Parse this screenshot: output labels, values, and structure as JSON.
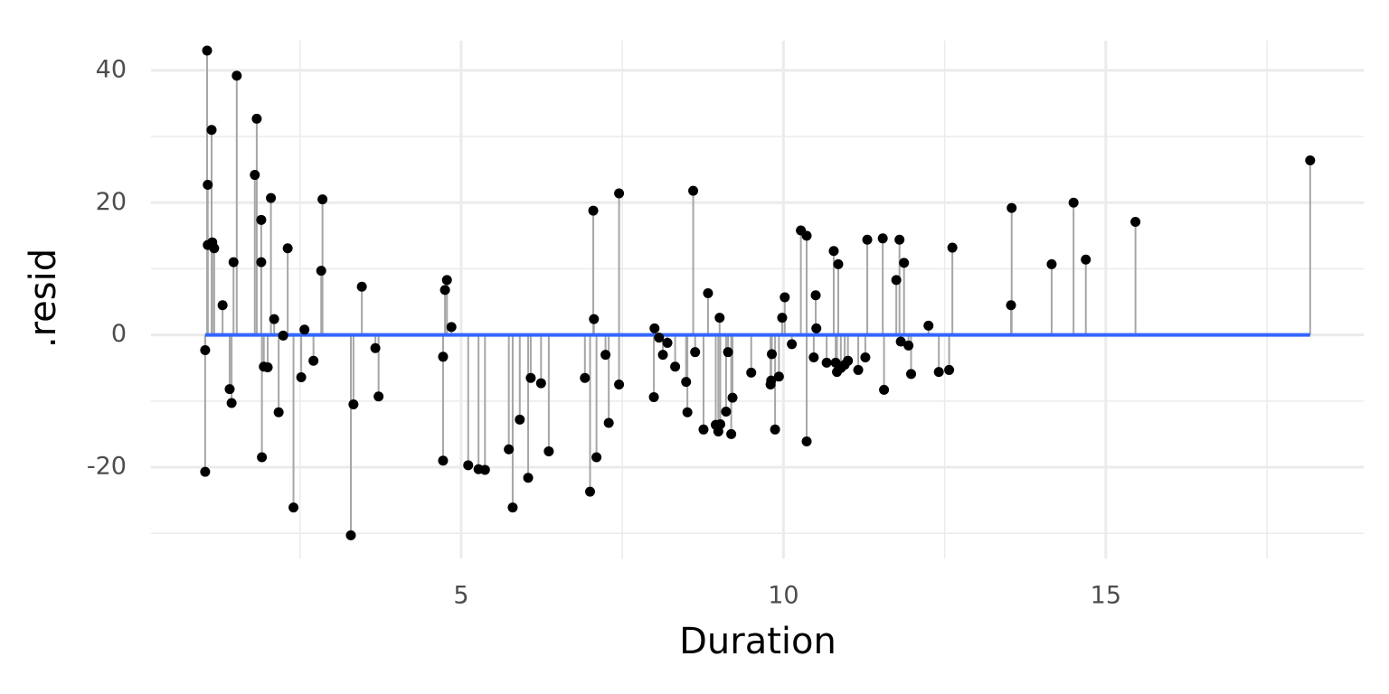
{
  "chart_data": {
    "type": "scatter",
    "stems": true,
    "xlabel": "Duration",
    "ylabel": ".resid",
    "x": [
      1.03,
      1.03,
      1.06,
      1.07,
      1.07,
      1.13,
      1.14,
      1.17,
      1.3,
      1.41,
      1.44,
      1.47,
      1.52,
      1.8,
      1.83,
      1.9,
      1.9,
      1.91,
      1.94,
      2.0,
      2.05,
      2.1,
      2.17,
      2.24,
      2.31,
      2.4,
      2.52,
      2.57,
      2.71,
      2.83,
      2.85,
      3.29,
      3.33,
      3.46,
      3.67,
      3.72,
      4.72,
      4.72,
      4.75,
      4.78,
      4.85,
      5.11,
      5.27,
      5.37,
      5.74,
      5.8,
      5.91,
      6.04,
      6.08,
      6.24,
      6.36,
      6.92,
      7.0,
      7.05,
      7.06,
      7.1,
      7.24,
      7.29,
      7.45,
      7.45,
      7.99,
      8.0,
      8.07,
      8.13,
      8.2,
      8.32,
      8.49,
      8.51,
      8.6,
      8.63,
      8.76,
      8.83,
      8.95,
      8.99,
      9.02,
      9.01,
      9.11,
      9.14,
      9.19,
      9.21,
      9.5,
      9.8,
      9.81,
      9.82,
      9.87,
      9.93,
      9.98,
      10.02,
      10.13,
      10.27,
      10.36,
      10.36,
      10.47,
      10.5,
      10.51,
      10.67,
      10.78,
      10.81,
      10.83,
      10.85,
      10.89,
      10.95,
      11.0,
      11.16,
      11.27,
      11.3,
      11.54,
      11.56,
      11.75,
      11.8,
      11.82,
      11.87,
      11.94,
      11.98,
      12.25,
      12.41,
      12.57,
      12.62,
      13.53,
      13.54,
      14.16,
      14.5,
      14.69,
      15.46,
      18.17
    ],
    "values": [
      -2.3,
      -20.7,
      43.0,
      22.7,
      13.6,
      31.0,
      14.0,
      13.1,
      4.5,
      -8.2,
      -10.3,
      11.0,
      39.2,
      24.2,
      32.7,
      17.4,
      11.0,
      -18.5,
      -4.8,
      -4.9,
      20.7,
      2.4,
      -11.7,
      -0.1,
      13.1,
      -26.1,
      -6.4,
      0.8,
      -3.9,
      9.7,
      20.5,
      -30.3,
      -10.5,
      7.3,
      -2.0,
      -9.3,
      -3.3,
      -19.0,
      6.8,
      8.3,
      1.2,
      -19.7,
      -20.3,
      -20.4,
      -17.3,
      -26.1,
      -12.8,
      -21.6,
      -6.5,
      -7.3,
      -17.6,
      -6.5,
      -23.7,
      18.8,
      2.4,
      -18.5,
      -3.0,
      -13.3,
      21.4,
      -7.5,
      -9.4,
      1.0,
      -0.4,
      -3.0,
      -1.2,
      -4.8,
      -7.1,
      -11.7,
      21.8,
      -2.6,
      -14.3,
      6.3,
      -13.6,
      -14.6,
      -13.5,
      2.6,
      -11.6,
      -2.6,
      -15.0,
      -9.5,
      -5.7,
      -7.5,
      -6.9,
      -2.9,
      -14.3,
      -6.3,
      2.6,
      5.7,
      -1.4,
      15.8,
      15.0,
      -16.1,
      -3.4,
      6.0,
      1.0,
      -4.2,
      12.7,
      -4.2,
      -5.6,
      10.7,
      -5.0,
      -4.5,
      -3.9,
      -5.3,
      -3.4,
      14.4,
      14.6,
      -8.3,
      8.3,
      14.4,
      -1.0,
      10.9,
      -1.6,
      -5.9,
      1.4,
      -5.6,
      -5.3,
      13.2,
      4.5,
      19.2,
      10.7,
      20.0,
      11.4,
      17.1,
      26.4
    ],
    "color": "#000000",
    "stem_color": "#a6a6a6",
    "reference_line": {
      "x": [
        1.03,
        18.17
      ],
      "values": [
        0,
        0
      ],
      "color": "#3366ff"
    },
    "xlim": [
      0.19,
      19.0
    ],
    "xticks": [
      5,
      10,
      15
    ],
    "xticks_minor": [
      2.5,
      7.5,
      12.5,
      17.5
    ],
    "ylim": [
      -33.8,
      44.5
    ],
    "yticks": [
      -20,
      0,
      20,
      40
    ],
    "yticks_minor": [
      -30,
      -10,
      10,
      30
    ],
    "grid": true
  }
}
